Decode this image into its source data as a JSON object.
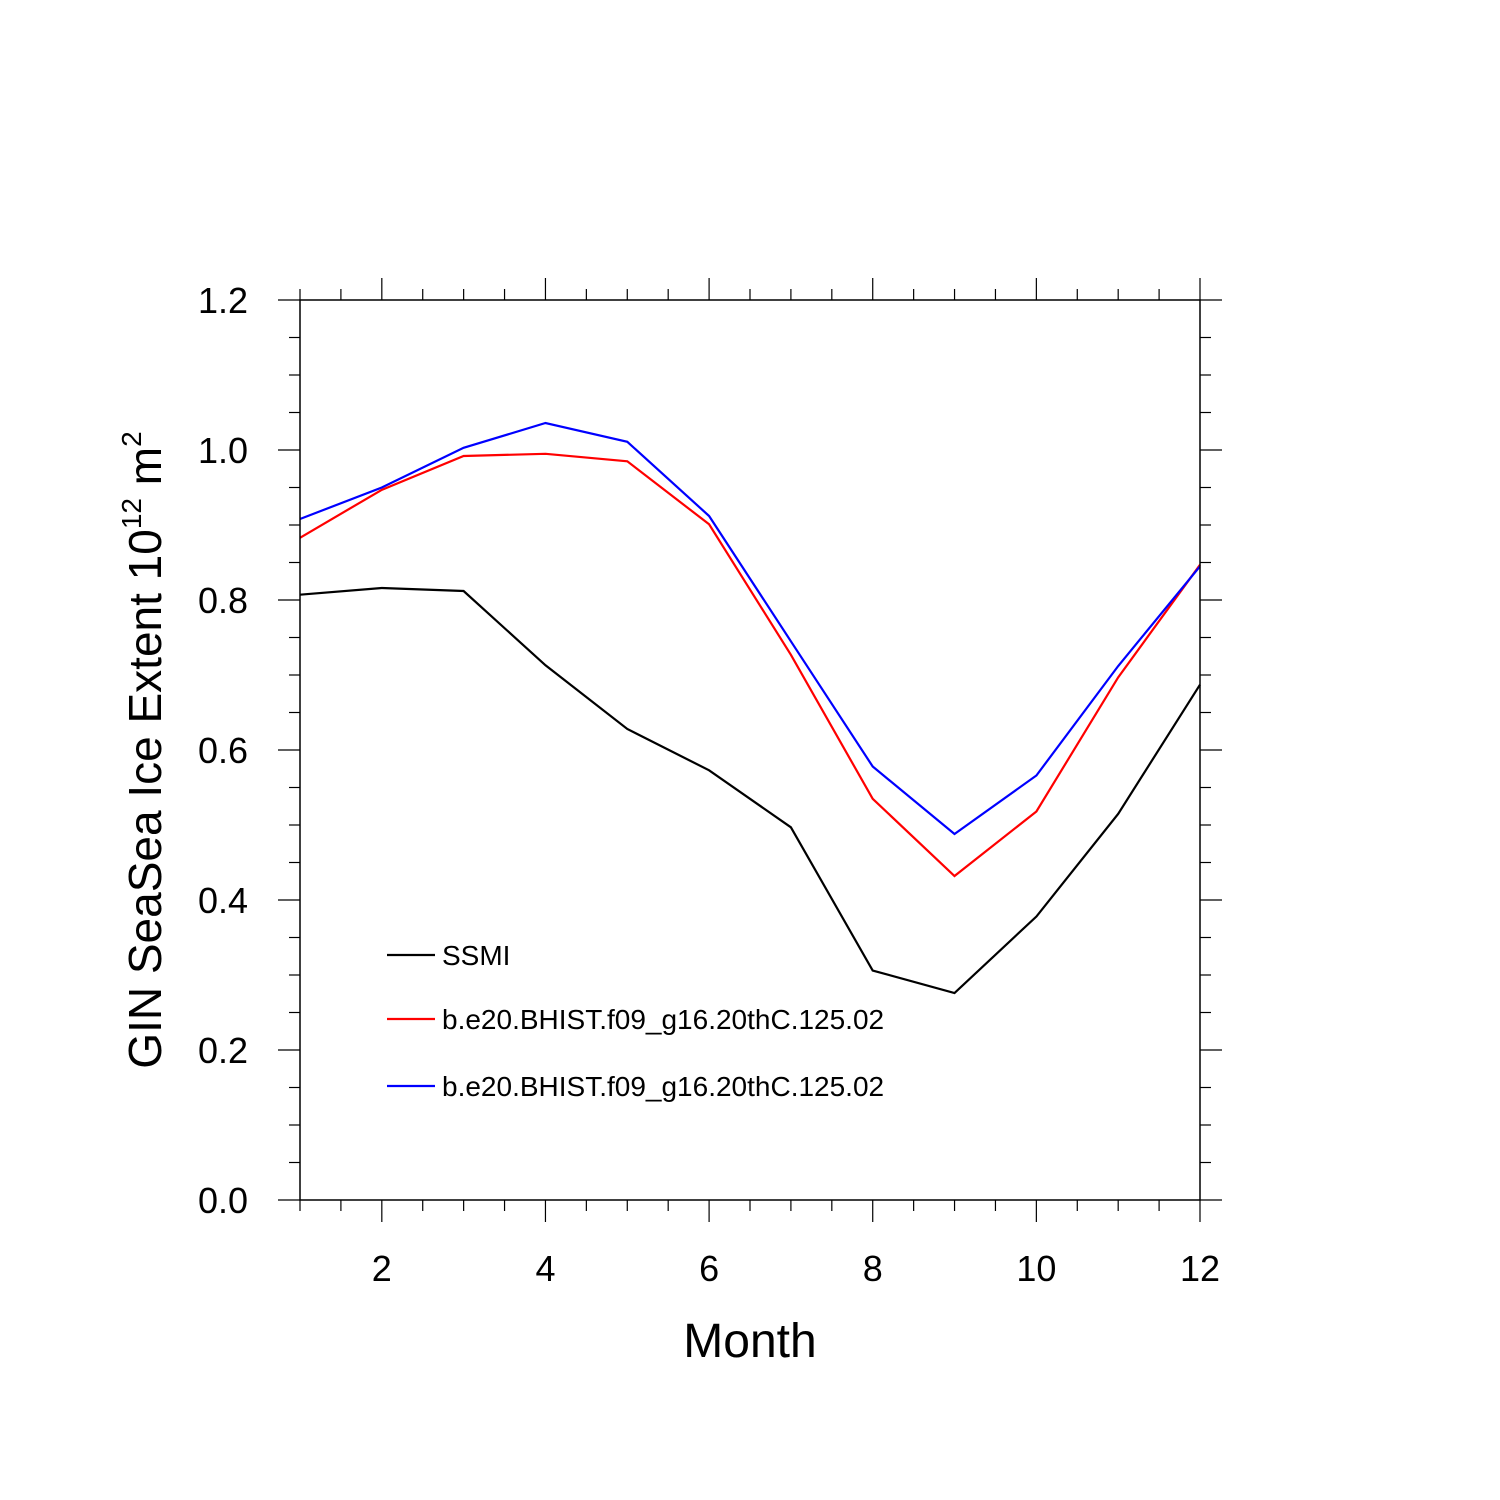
{
  "chart_data": {
    "type": "line",
    "title": "",
    "xlabel": "Month",
    "ylabel": {
      "prefix": "GIN SeaSea Ice Extent 10",
      "superscript1": "12",
      "middle": " m",
      "superscript2": "2"
    },
    "xlim": [
      1,
      12
    ],
    "ylim": [
      0.0,
      1.2
    ],
    "x_ticks": [
      2,
      4,
      6,
      8,
      10,
      12
    ],
    "x_tick_labels": [
      "2",
      "4",
      "6",
      "8",
      "10",
      "12"
    ],
    "y_ticks": [
      0.0,
      0.2,
      0.4,
      0.6,
      0.8,
      1.0,
      1.2
    ],
    "y_tick_labels": [
      "0.0",
      "0.2",
      "0.4",
      "0.6",
      "0.8",
      "1.0",
      "1.2"
    ],
    "x": [
      1,
      2,
      3,
      4,
      5,
      6,
      7,
      8,
      9,
      10,
      11,
      12
    ],
    "grid": false,
    "legend_position": "lower-left",
    "series": [
      {
        "name": "SSMI",
        "color": "#000000",
        "values": [
          0.807,
          0.816,
          0.812,
          0.713,
          0.628,
          0.573,
          0.497,
          0.306,
          0.276,
          0.378,
          0.515,
          0.687
        ]
      },
      {
        "name": "b.e20.BHIST.f09_g16.20thC.125.02",
        "color": "#ff0000",
        "values": [
          0.883,
          0.947,
          0.992,
          0.995,
          0.985,
          0.901,
          0.727,
          0.535,
          0.432,
          0.518,
          0.697,
          0.847
        ]
      },
      {
        "name": "b.e20.BHIST.f09_g16.20thC.125.02",
        "color": "#0000ff",
        "values": [
          0.908,
          0.95,
          1.003,
          1.036,
          1.011,
          0.912,
          0.745,
          0.578,
          0.488,
          0.566,
          0.712,
          0.845
        ]
      }
    ]
  }
}
